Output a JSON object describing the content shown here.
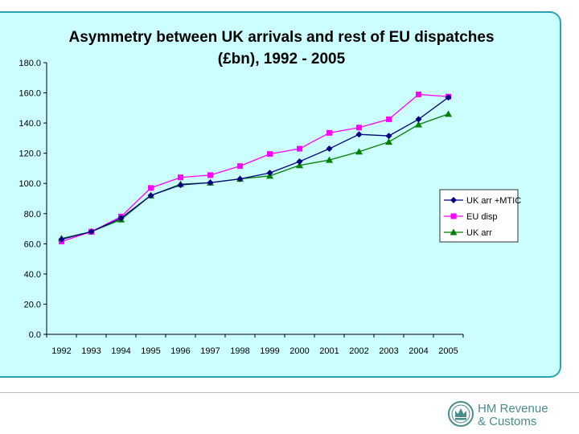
{
  "chart_data": {
    "type": "line",
    "title": "Asymmetry between UK arrivals and rest of EU dispatches",
    "title_line2": "(£bn),  1992 - 2005",
    "categories": [
      "1992",
      "1993",
      "1994",
      "1995",
      "1996",
      "1997",
      "1998",
      "1999",
      "2000",
      "2001",
      "2002",
      "2003",
      "2004",
      "2005"
    ],
    "ylim": [
      0,
      180
    ],
    "yticks": [
      0,
      20,
      40,
      60,
      80,
      100,
      120,
      140,
      160,
      180
    ],
    "ytick_labels": [
      "0.0",
      "20.0",
      "40.0",
      "60.0",
      "80.0",
      "100.0",
      "120.0",
      "140.0",
      "160.0",
      "180.0"
    ],
    "legend_position": "right",
    "series": [
      {
        "name": "UK arr +MTIC",
        "color": "#000080",
        "marker": "diamond",
        "values": [
          63,
          68,
          77,
          92,
          99,
          100.5,
          103,
          107,
          114.5,
          123,
          132.5,
          131.5,
          142.5,
          157
        ]
      },
      {
        "name": "EU disp",
        "color": "#ff00ff",
        "marker": "square",
        "values": [
          61.5,
          68,
          78,
          97,
          104,
          105.5,
          111.5,
          119.5,
          123,
          133.5,
          137,
          142.5,
          159,
          157.5
        ]
      },
      {
        "name": "UK arr",
        "color": "#008000",
        "marker": "triangle",
        "values": [
          63.5,
          68,
          76,
          92,
          99.5,
          100.5,
          103,
          105,
          112,
          115.5,
          121,
          127.5,
          139,
          146
        ]
      }
    ]
  },
  "logo": {
    "line1": "HM Revenue",
    "line2": "& Customs"
  }
}
